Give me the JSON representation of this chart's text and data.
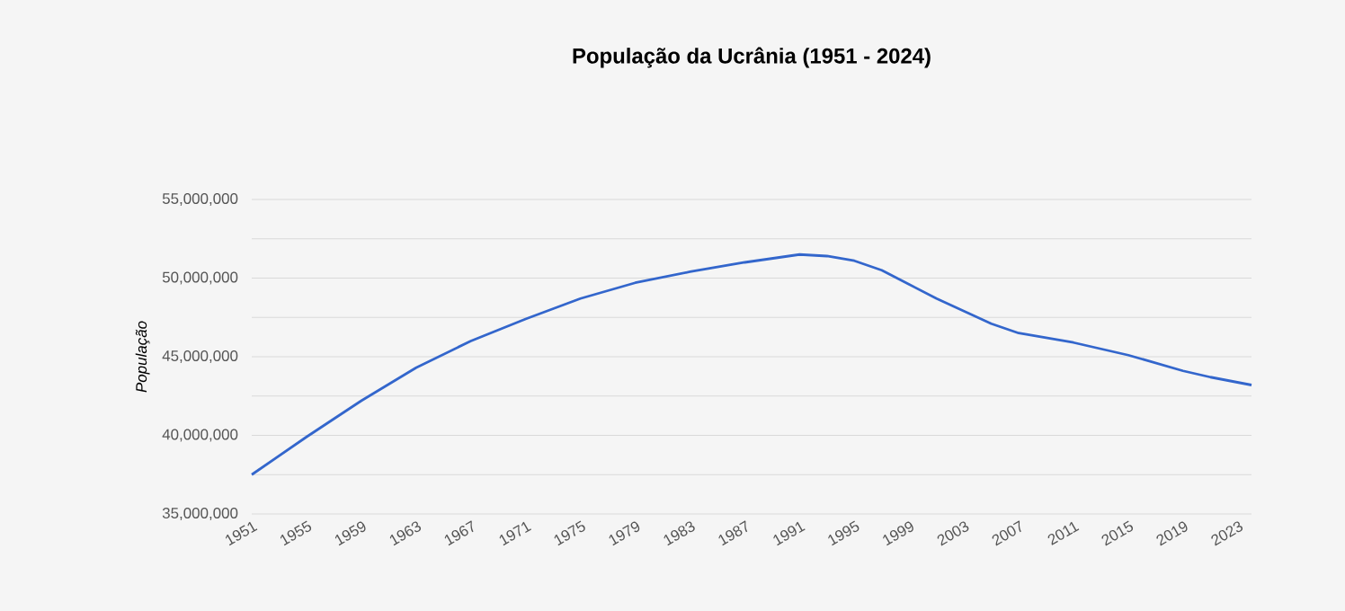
{
  "chart_data": {
    "type": "line",
    "title": "População da Ucrânia (1951 - 2024)",
    "ylabel": "População",
    "x": [
      1951,
      1955,
      1959,
      1963,
      1967,
      1971,
      1975,
      1979,
      1983,
      1987,
      1991,
      1993,
      1995,
      1997,
      1999,
      2001,
      2003,
      2005,
      2007,
      2011,
      2015,
      2019,
      2021,
      2024
    ],
    "series": [
      {
        "color": "#3366cc",
        "values": [
          37500000,
          39900000,
          42200000,
          44300000,
          46000000,
          47400000,
          48700000,
          49700000,
          50400000,
          51000000,
          51500000,
          51400000,
          51100000,
          50500000,
          49600000,
          48700000,
          47900000,
          47100000,
          46500000,
          45900000,
          45100000,
          44100000,
          43700000,
          43200000
        ]
      }
    ],
    "xlim": [
      1951,
      2024
    ],
    "xticks": [
      1951,
      1955,
      1959,
      1963,
      1967,
      1971,
      1975,
      1979,
      1983,
      1987,
      1991,
      1995,
      1999,
      2003,
      2007,
      2011,
      2015,
      2019,
      2023
    ],
    "ylim": [
      35000000,
      55000000
    ],
    "yticks": [
      {
        "value": 35000000,
        "label": "35,000,000"
      },
      {
        "value": 37500000,
        "label": null
      },
      {
        "value": 40000000,
        "label": "40,000,000"
      },
      {
        "value": 42500000,
        "label": null
      },
      {
        "value": 45000000,
        "label": "45,000,000"
      },
      {
        "value": 47500000,
        "label": null
      },
      {
        "value": 50000000,
        "label": "50,000,000"
      },
      {
        "value": 52500000,
        "label": null
      },
      {
        "value": 55000000,
        "label": "55,000,000"
      }
    ],
    "grid": "y",
    "legend": false,
    "marker": "none",
    "line_style": "solid"
  }
}
